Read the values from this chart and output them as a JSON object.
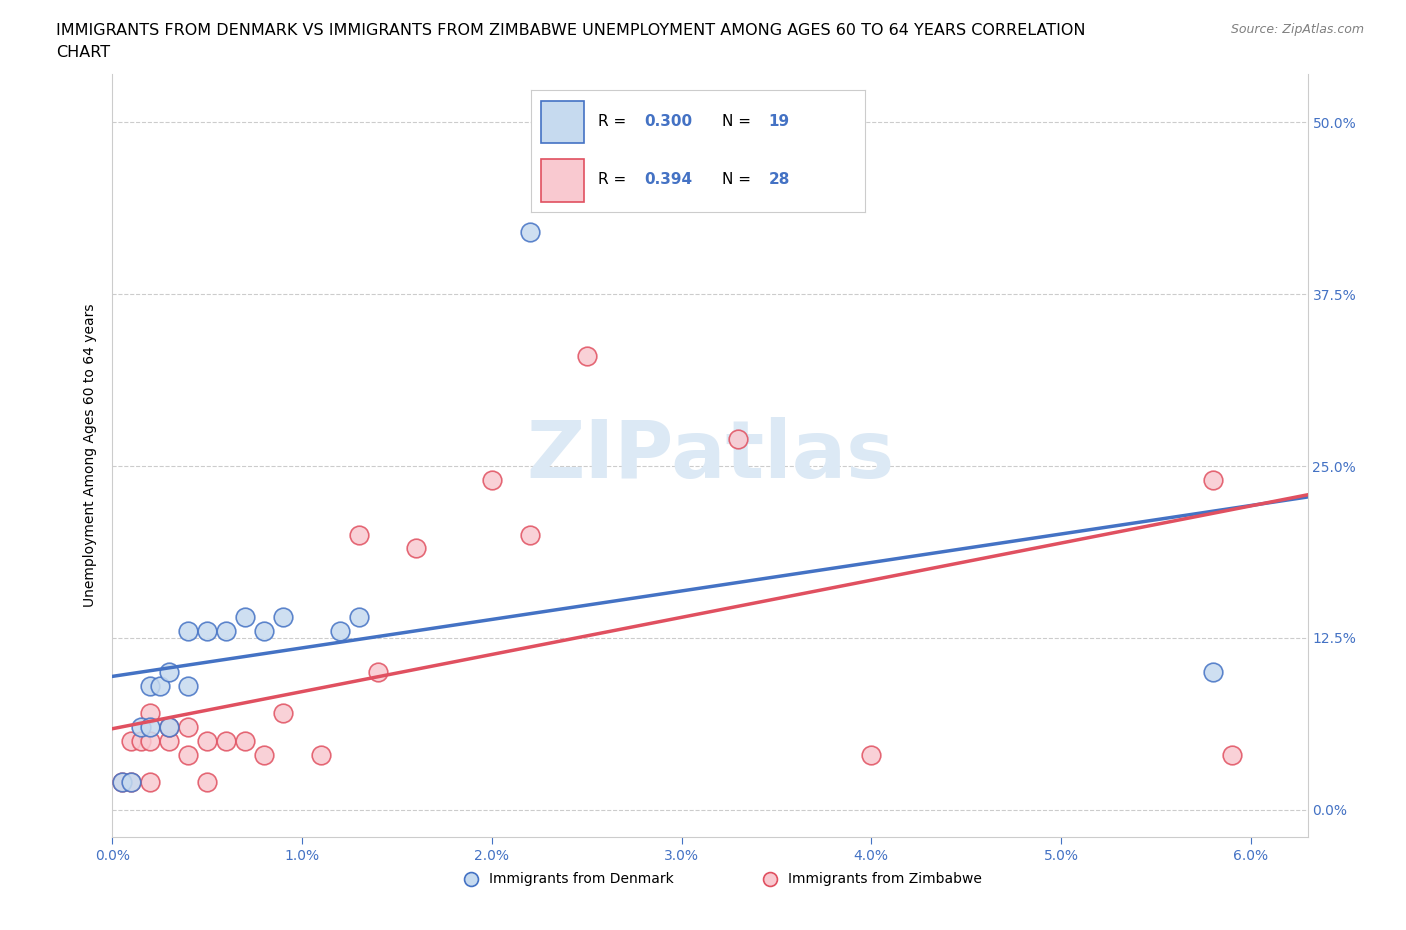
{
  "title_line1": "IMMIGRANTS FROM DENMARK VS IMMIGRANTS FROM ZIMBABWE UNEMPLOYMENT AMONG AGES 60 TO 64 YEARS CORRELATION",
  "title_line2": "CHART",
  "source": "Source: ZipAtlas.com",
  "xlim": [
    0.0,
    0.063
  ],
  "ylim": [
    -0.02,
    0.535
  ],
  "x_tick_vals": [
    0.0,
    0.01,
    0.02,
    0.03,
    0.04,
    0.05,
    0.06
  ],
  "x_tick_labels": [
    "0.0%",
    "1.0%",
    "2.0%",
    "3.0%",
    "4.0%",
    "5.0%",
    "6.0%"
  ],
  "y_tick_vals": [
    0.0,
    0.125,
    0.25,
    0.375,
    0.5
  ],
  "y_tick_labels": [
    "0.0%",
    "12.5%",
    "25.0%",
    "37.5%",
    "50.0%"
  ],
  "denmark_x": [
    0.0005,
    0.001,
    0.0015,
    0.002,
    0.002,
    0.0025,
    0.003,
    0.003,
    0.004,
    0.004,
    0.005,
    0.006,
    0.007,
    0.008,
    0.009,
    0.012,
    0.013,
    0.022,
    0.058
  ],
  "denmark_y": [
    0.02,
    0.02,
    0.06,
    0.06,
    0.09,
    0.09,
    0.06,
    0.1,
    0.09,
    0.13,
    0.13,
    0.13,
    0.14,
    0.13,
    0.14,
    0.13,
    0.14,
    0.42,
    0.1
  ],
  "zimbabwe_x": [
    0.0005,
    0.001,
    0.001,
    0.0015,
    0.002,
    0.002,
    0.002,
    0.003,
    0.003,
    0.004,
    0.004,
    0.005,
    0.005,
    0.006,
    0.007,
    0.008,
    0.009,
    0.011,
    0.013,
    0.014,
    0.016,
    0.02,
    0.022,
    0.025,
    0.033,
    0.04,
    0.058,
    0.059
  ],
  "zimbabwe_y": [
    0.02,
    0.02,
    0.05,
    0.05,
    0.02,
    0.05,
    0.07,
    0.05,
    0.06,
    0.04,
    0.06,
    0.02,
    0.05,
    0.05,
    0.05,
    0.04,
    0.07,
    0.04,
    0.2,
    0.1,
    0.19,
    0.24,
    0.2,
    0.33,
    0.27,
    0.04,
    0.24,
    0.04
  ],
  "denmark_color": "#c6daef",
  "denmark_edge": "#4472c4",
  "zimbabwe_color": "#f9c9d0",
  "zimbabwe_edge": "#e05060",
  "denmark_line_color": "#4472c4",
  "zimbabwe_line_color": "#e05060",
  "denmark_R": 0.3,
  "denmark_N": 19,
  "zimbabwe_R": 0.394,
  "zimbabwe_N": 28,
  "grid_color": "#cccccc",
  "background_color": "#ffffff",
  "watermark_text": "ZIPatlas",
  "watermark_color": "#dce9f5",
  "legend_patch_color_dk": "#c6daef",
  "legend_patch_edge_dk": "#4472c4",
  "legend_patch_color_zim": "#f9c9d0",
  "legend_patch_edge_zim": "#e05060",
  "legend_R_color": "#4472c4",
  "tick_color": "#4472c4",
  "ylabel_text": "Unemployment Among Ages 60 to 64 years",
  "source_color": "#808080",
  "title_fontsize": 11.5,
  "tick_fontsize": 10,
  "axis_label_fontsize": 10
}
